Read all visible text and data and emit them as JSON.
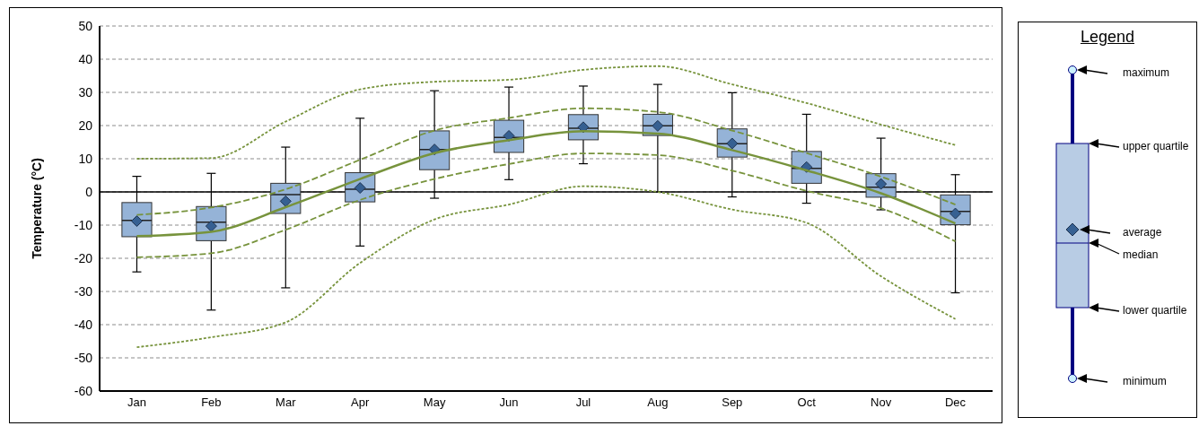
{
  "chart_data": {
    "type": "box",
    "ylabel": "Temperature (°C)",
    "categories": [
      "Jan",
      "Feb",
      "Mar",
      "Apr",
      "May",
      "Jun",
      "Jul",
      "Aug",
      "Sep",
      "Oct",
      "Nov",
      "Dec"
    ],
    "ylim": [
      -60,
      50
    ],
    "yticks": [
      -60,
      -50,
      -40,
      -30,
      -20,
      -10,
      0,
      10,
      20,
      30,
      40,
      50
    ],
    "grid": "y",
    "legend_title": "Legend",
    "annotations": [
      "maximum",
      "upper quartile",
      "average",
      "median",
      "lower quartile",
      "minimum"
    ],
    "ref_lines": [
      {
        "axis": "y",
        "value": 0,
        "color": "#000000"
      }
    ],
    "series": [
      {
        "type": "box",
        "color": "#95b3d7",
        "boxes": [
          {
            "low": -24.1,
            "q1": -13.5,
            "median": -8.6,
            "q3": -3.2,
            "high": 4.7,
            "mean": -8.8
          },
          {
            "low": -35.6,
            "q1": -14.7,
            "median": -9.1,
            "q3": -4.4,
            "high": 5.6,
            "mean": -10.3
          },
          {
            "low": -28.9,
            "q1": -6.5,
            "median": -0.8,
            "q3": 2.6,
            "high": 13.5,
            "mean": -2.8
          },
          {
            "low": -16.3,
            "q1": -3,
            "median": 0.8,
            "q3": 5.8,
            "high": 22.2,
            "mean": 1.2
          },
          {
            "low": -1.9,
            "q1": 6.7,
            "median": 12.8,
            "q3": 18.4,
            "high": 30.5,
            "mean": 12.8
          },
          {
            "low": 3.7,
            "q1": 11.9,
            "median": 16.4,
            "q3": 21.6,
            "high": 31.6,
            "mean": 16.9
          },
          {
            "low": 8.5,
            "q1": 15.7,
            "median": 19.2,
            "q3": 23.3,
            "high": 31.9,
            "mean": 19.5
          },
          {
            "low": 0,
            "q1": 17,
            "median": 19.9,
            "q3": 23.4,
            "high": 32.4,
            "mean": 19.9
          },
          {
            "low": -1.5,
            "q1": 10.5,
            "median": 14.5,
            "q3": 19,
            "high": 29.9,
            "mean": 14.6
          },
          {
            "low": -3.4,
            "q1": 2.6,
            "median": 7.1,
            "q3": 12.2,
            "high": 23.4,
            "mean": 7.5
          },
          {
            "low": -5.4,
            "q1": -1.6,
            "median": 1.4,
            "q3": 5.5,
            "high": 16.2,
            "mean": 2.4
          },
          {
            "low": -30.4,
            "q1": -9.9,
            "median": -5.9,
            "q3": -0.9,
            "high": 5.2,
            "mean": -6.5
          }
        ]
      },
      {
        "type": "line",
        "color": "#77933c",
        "line_style": "solid",
        "values": [
          -13.3,
          -12,
          -4.6,
          3.9,
          11.7,
          15.6,
          18.3,
          17.6,
          12.6,
          6.5,
          -0.4,
          -9.5
        ]
      },
      {
        "type": "line",
        "color": "#77933c",
        "line_style": "dashed",
        "values": [
          -6.9,
          -4.7,
          0.8,
          9.7,
          18.5,
          22.3,
          25.2,
          24.1,
          18.5,
          11.7,
          4.6,
          -3.8
        ]
      },
      {
        "type": "line",
        "color": "#77933c",
        "line_style": "dashed",
        "values": [
          -19.7,
          -18.5,
          -11.4,
          -2.4,
          3.9,
          8.4,
          11.6,
          11.1,
          6.4,
          0.3,
          -4.9,
          -14.9
        ]
      },
      {
        "type": "line",
        "color": "#77933c",
        "line_style": "dotted",
        "values": [
          10,
          10.2,
          21.2,
          30.9,
          33.2,
          33.8,
          36.8,
          37.9,
          32.4,
          26.8,
          20.3,
          14.1
        ]
      },
      {
        "type": "line",
        "color": "#77933c",
        "line_style": "dotted",
        "values": [
          -46.8,
          -43.8,
          -39.3,
          -21.4,
          -8.3,
          -3.8,
          1.7,
          0,
          -5.3,
          -9.3,
          -25.4,
          -38.3
        ]
      }
    ]
  }
}
